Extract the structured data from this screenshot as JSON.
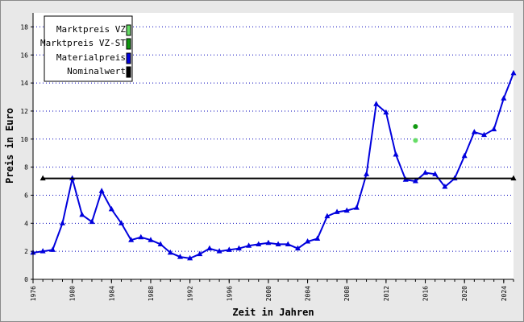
{
  "chart_data": {
    "type": "line",
    "xlabel": "Zeit in Jahren",
    "ylabel": "Preis in Euro",
    "xlim": [
      1976,
      2025
    ],
    "ylim": [
      0,
      19
    ],
    "x_ticks": [
      1976,
      1980,
      1984,
      1988,
      1992,
      1996,
      2000,
      2004,
      2008,
      2012,
      2016,
      2020,
      2024
    ],
    "y_ticks": [
      0,
      2,
      4,
      6,
      8,
      10,
      12,
      14,
      16,
      18
    ],
    "grid": "horizontal-dotted",
    "legend_position": "top-left",
    "legend": [
      {
        "label": "Marktpreis VZ",
        "color": "#66dd66"
      },
      {
        "label": "Marktpreis VZ-ST",
        "color": "#119911"
      },
      {
        "label": "Materialpreis",
        "color": "#0000dd"
      },
      {
        "label": "Nominalwert",
        "color": "#000000"
      }
    ],
    "series": [
      {
        "name": "Materialpreis",
        "color": "#0000dd",
        "marker": "triangle",
        "x": [
          1976,
          1977,
          1978,
          1979,
          1980,
          1981,
          1982,
          1983,
          1984,
          1985,
          1986,
          1987,
          1988,
          1989,
          1990,
          1991,
          1992,
          1993,
          1994,
          1995,
          1996,
          1997,
          1998,
          1999,
          2000,
          2001,
          2002,
          2003,
          2004,
          2005,
          2006,
          2007,
          2008,
          2009,
          2010,
          2011,
          2012,
          2013,
          2014,
          2015,
          2016,
          2017,
          2018,
          2019,
          2020,
          2021,
          2022,
          2023,
          2024,
          2025
        ],
        "y": [
          1.9,
          2.0,
          2.1,
          4.0,
          7.2,
          4.6,
          4.1,
          6.3,
          5.0,
          4.0,
          2.8,
          3.0,
          2.8,
          2.5,
          1.9,
          1.6,
          1.5,
          1.8,
          2.2,
          2.0,
          2.1,
          2.2,
          2.4,
          2.5,
          2.6,
          2.5,
          2.5,
          2.2,
          2.7,
          2.9,
          4.5,
          4.8,
          4.9,
          5.1,
          7.5,
          12.5,
          11.9,
          8.9,
          7.1,
          7.0,
          7.6,
          7.5,
          6.6,
          7.2,
          8.8,
          10.5,
          10.3,
          10.7,
          12.9,
          14.7
        ]
      },
      {
        "name": "Nominalwert",
        "color": "#000000",
        "marker": "triangle",
        "x": [
          1977,
          2025
        ],
        "y": [
          7.2,
          7.2
        ]
      },
      {
        "name": "Marktpreis VZ-ST",
        "color": "#119911",
        "marker": "circle",
        "x": [
          2015
        ],
        "y": [
          10.9
        ]
      },
      {
        "name": "Marktpreis VZ",
        "color": "#66dd66",
        "marker": "circle",
        "x": [
          2015
        ],
        "y": [
          9.9
        ]
      }
    ]
  }
}
